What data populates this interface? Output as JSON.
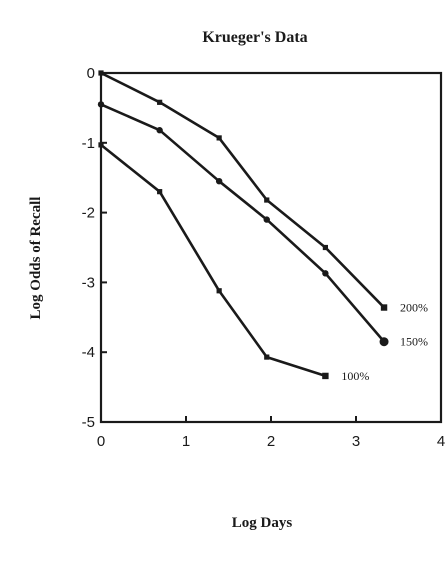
{
  "chart_data": {
    "type": "line",
    "title": "Krueger's Data",
    "xlabel": "Log Days",
    "ylabel": "Log Odds of Recall",
    "xlim": [
      0,
      4
    ],
    "ylim": [
      -5,
      0
    ],
    "xticks": [
      "0",
      "1",
      "2",
      "3",
      "4"
    ],
    "yticks": [
      "0",
      "-1",
      "-2",
      "-3",
      "-4",
      "-5"
    ],
    "grid": false,
    "legend": "none",
    "series": [
      {
        "name": "200%",
        "marker": "square",
        "x": [
          0,
          0.69,
          1.39,
          1.95,
          2.64,
          3.33
        ],
        "y": [
          0,
          -0.42,
          -0.93,
          -1.82,
          -2.5,
          -3.36
        ]
      },
      {
        "name": "150%",
        "marker": "circle",
        "x": [
          0,
          0.69,
          1.39,
          1.95,
          2.64,
          3.33
        ],
        "y": [
          -0.45,
          -0.82,
          -1.55,
          -2.1,
          -2.87,
          -3.85
        ]
      },
      {
        "name": "100%",
        "marker": "square",
        "x": [
          0,
          0.69,
          1.39,
          1.95,
          2.64
        ],
        "y": [
          -1.03,
          -1.7,
          -3.12,
          -4.07,
          -4.34
        ]
      }
    ]
  }
}
